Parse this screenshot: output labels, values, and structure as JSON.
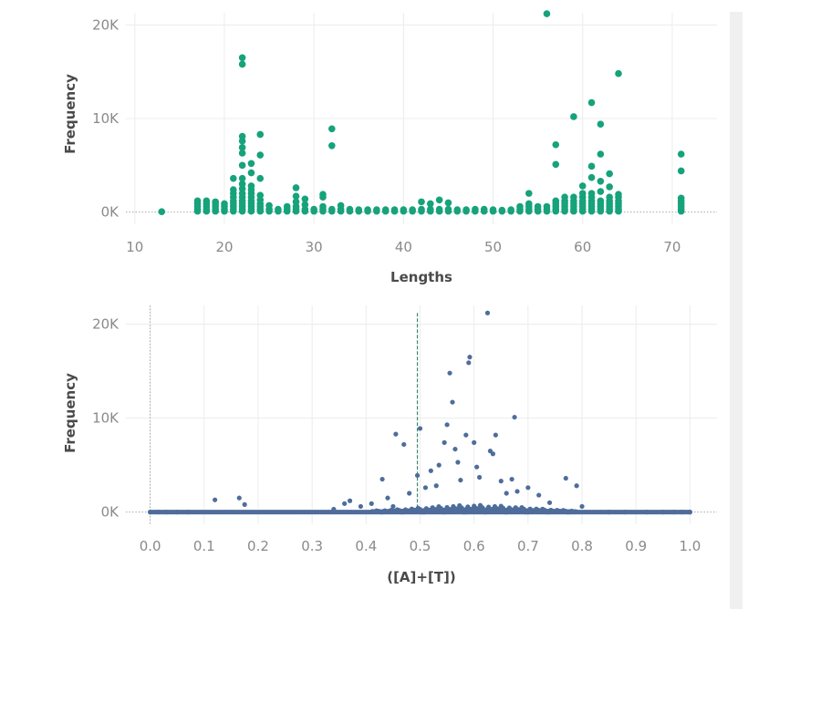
{
  "colors": {
    "green": "#16a27a",
    "blue": "#4e6d9b",
    "grid": "#ececec",
    "zero_line": "#a8a8a8",
    "ref_line": "#3a8a6a"
  },
  "chart_data": [
    {
      "type": "scatter",
      "xlabel": "Lengths",
      "ylabel": "Frequency",
      "xlim": [
        9,
        75
      ],
      "ylim": [
        -1300,
        21300
      ],
      "x_ticks": [
        10,
        20,
        30,
        40,
        50,
        60,
        70
      ],
      "x_tick_labels": [
        "10",
        "20",
        "30",
        "40",
        "50",
        "60",
        "70"
      ],
      "y_ticks": [
        0,
        10000,
        20000
      ],
      "y_tick_labels": [
        "0K",
        "10K",
        "20K"
      ],
      "zero_line": true,
      "grid": true,
      "marker_color": "#16a27a",
      "points": [
        [
          13,
          50
        ],
        [
          17,
          100
        ],
        [
          17,
          300
        ],
        [
          17,
          600
        ],
        [
          17,
          900
        ],
        [
          17,
          1200
        ],
        [
          18,
          100
        ],
        [
          18,
          300
        ],
        [
          18,
          600
        ],
        [
          18,
          900
        ],
        [
          18,
          1200
        ],
        [
          19,
          100
        ],
        [
          19,
          300
        ],
        [
          19,
          600
        ],
        [
          19,
          900
        ],
        [
          19,
          1100
        ],
        [
          20,
          100
        ],
        [
          20,
          300
        ],
        [
          20,
          600
        ],
        [
          20,
          900
        ],
        [
          21,
          100
        ],
        [
          21,
          300
        ],
        [
          21,
          600
        ],
        [
          21,
          900
        ],
        [
          21,
          1200
        ],
        [
          21,
          1600
        ],
        [
          21,
          2000
        ],
        [
          21,
          2400
        ],
        [
          21,
          3600
        ],
        [
          22,
          100
        ],
        [
          22,
          300
        ],
        [
          22,
          600
        ],
        [
          22,
          900
        ],
        [
          22,
          1200
        ],
        [
          22,
          1600
        ],
        [
          22,
          2000
        ],
        [
          22,
          2500
        ],
        [
          22,
          3000
        ],
        [
          22,
          3600
        ],
        [
          22,
          5000
        ],
        [
          22,
          6300
        ],
        [
          22,
          6900
        ],
        [
          22,
          7600
        ],
        [
          22,
          8100
        ],
        [
          22,
          15800
        ],
        [
          22,
          16500
        ],
        [
          23,
          100
        ],
        [
          23,
          300
        ],
        [
          23,
          600
        ],
        [
          23,
          900
        ],
        [
          23,
          1200
        ],
        [
          23,
          1600
        ],
        [
          23,
          2000
        ],
        [
          23,
          2400
        ],
        [
          23,
          2800
        ],
        [
          23,
          4200
        ],
        [
          23,
          5200
        ],
        [
          24,
          100
        ],
        [
          24,
          300
        ],
        [
          24,
          600
        ],
        [
          24,
          900
        ],
        [
          24,
          1300
        ],
        [
          24,
          1800
        ],
        [
          24,
          3600
        ],
        [
          24,
          6100
        ],
        [
          24,
          8300
        ],
        [
          25,
          100
        ],
        [
          25,
          300
        ],
        [
          25,
          700
        ],
        [
          26,
          100
        ],
        [
          26,
          300
        ],
        [
          27,
          100
        ],
        [
          27,
          300
        ],
        [
          27,
          600
        ],
        [
          28,
          100
        ],
        [
          28,
          300
        ],
        [
          28,
          600
        ],
        [
          28,
          1100
        ],
        [
          28,
          1700
        ],
        [
          28,
          2600
        ],
        [
          29,
          100
        ],
        [
          29,
          300
        ],
        [
          29,
          800
        ],
        [
          29,
          1400
        ],
        [
          30,
          100
        ],
        [
          30,
          300
        ],
        [
          31,
          100
        ],
        [
          31,
          300
        ],
        [
          31,
          600
        ],
        [
          31,
          1600
        ],
        [
          31,
          1900
        ],
        [
          32,
          100
        ],
        [
          32,
          300
        ],
        [
          32,
          7100
        ],
        [
          32,
          8900
        ],
        [
          33,
          100
        ],
        [
          33,
          300
        ],
        [
          33,
          700
        ],
        [
          34,
          100
        ],
        [
          34,
          300
        ],
        [
          35,
          100
        ],
        [
          35,
          250
        ],
        [
          36,
          100
        ],
        [
          36,
          250
        ],
        [
          37,
          100
        ],
        [
          37,
          250
        ],
        [
          38,
          100
        ],
        [
          38,
          250
        ],
        [
          39,
          100
        ],
        [
          39,
          250
        ],
        [
          40,
          100
        ],
        [
          40,
          250
        ],
        [
          41,
          100
        ],
        [
          41,
          250
        ],
        [
          42,
          100
        ],
        [
          42,
          300
        ],
        [
          42,
          1100
        ],
        [
          43,
          100
        ],
        [
          43,
          300
        ],
        [
          43,
          900
        ],
        [
          44,
          100
        ],
        [
          44,
          300
        ],
        [
          44,
          1300
        ],
        [
          45,
          100
        ],
        [
          45,
          300
        ],
        [
          45,
          1000
        ],
        [
          46,
          100
        ],
        [
          46,
          250
        ],
        [
          47,
          100
        ],
        [
          47,
          250
        ],
        [
          48,
          100
        ],
        [
          48,
          300
        ],
        [
          49,
          100
        ],
        [
          49,
          300
        ],
        [
          50,
          100
        ],
        [
          50,
          250
        ],
        [
          51,
          100
        ],
        [
          51,
          200
        ],
        [
          52,
          100
        ],
        [
          52,
          250
        ],
        [
          53,
          100
        ],
        [
          53,
          300
        ],
        [
          53,
          600
        ],
        [
          54,
          100
        ],
        [
          54,
          300
        ],
        [
          54,
          600
        ],
        [
          54,
          900
        ],
        [
          54,
          2000
        ],
        [
          55,
          100
        ],
        [
          55,
          300
        ],
        [
          55,
          600
        ],
        [
          56,
          100
        ],
        [
          56,
          300
        ],
        [
          56,
          600
        ],
        [
          56,
          21200
        ],
        [
          57,
          100
        ],
        [
          57,
          300
        ],
        [
          57,
          600
        ],
        [
          57,
          900
        ],
        [
          57,
          1200
        ],
        [
          57,
          5100
        ],
        [
          57,
          7200
        ],
        [
          58,
          100
        ],
        [
          58,
          300
        ],
        [
          58,
          600
        ],
        [
          58,
          900
        ],
        [
          58,
          1200
        ],
        [
          58,
          1600
        ],
        [
          59,
          100
        ],
        [
          59,
          300
        ],
        [
          59,
          600
        ],
        [
          59,
          900
        ],
        [
          59,
          1200
        ],
        [
          59,
          1600
        ],
        [
          59,
          10200
        ],
        [
          60,
          100
        ],
        [
          60,
          300
        ],
        [
          60,
          600
        ],
        [
          60,
          900
        ],
        [
          60,
          1200
        ],
        [
          60,
          1600
        ],
        [
          60,
          2000
        ],
        [
          60,
          2800
        ],
        [
          61,
          100
        ],
        [
          61,
          300
        ],
        [
          61,
          600
        ],
        [
          61,
          900
        ],
        [
          61,
          1200
        ],
        [
          61,
          1600
        ],
        [
          61,
          2000
        ],
        [
          61,
          3700
        ],
        [
          61,
          4900
        ],
        [
          61,
          11700
        ],
        [
          62,
          100
        ],
        [
          62,
          300
        ],
        [
          62,
          600
        ],
        [
          62,
          900
        ],
        [
          62,
          1200
        ],
        [
          62,
          2200
        ],
        [
          62,
          3300
        ],
        [
          62,
          6200
        ],
        [
          62,
          9400
        ],
        [
          63,
          100
        ],
        [
          63,
          300
        ],
        [
          63,
          600
        ],
        [
          63,
          900
        ],
        [
          63,
          1200
        ],
        [
          63,
          1600
        ],
        [
          63,
          2700
        ],
        [
          63,
          4100
        ],
        [
          64,
          100
        ],
        [
          64,
          300
        ],
        [
          64,
          600
        ],
        [
          64,
          900
        ],
        [
          64,
          1200
        ],
        [
          64,
          1600
        ],
        [
          64,
          1900
        ],
        [
          64,
          14800
        ],
        [
          71,
          100
        ],
        [
          71,
          300
        ],
        [
          71,
          600
        ],
        [
          71,
          900
        ],
        [
          71,
          1200
        ],
        [
          71,
          1500
        ],
        [
          71,
          4400
        ],
        [
          71,
          6200
        ]
      ]
    },
    {
      "type": "scatter",
      "xlabel": "([A]+[T])",
      "ylabel": "Frequency",
      "xlim": [
        -0.045,
        1.05
      ],
      "ylim": [
        -1300,
        22000
      ],
      "x_ticks": [
        0.0,
        0.1,
        0.2,
        0.3,
        0.4,
        0.5,
        0.6,
        0.7,
        0.8,
        0.9,
        1.0
      ],
      "x_tick_labels": [
        "0.0",
        "0.1",
        "0.2",
        "0.3",
        "0.4",
        "0.5",
        "0.6",
        "0.7",
        "0.8",
        "0.9",
        "1.0"
      ],
      "y_ticks": [
        0,
        10000,
        20000
      ],
      "y_tick_labels": [
        "0K",
        "10K",
        "20K"
      ],
      "zero_line": true,
      "grid": true,
      "reference_line_x": 0.495,
      "marker_color": "#4e6d9b",
      "points": [
        [
          0.0,
          0
        ],
        [
          0.015,
          0
        ],
        [
          0.03,
          0
        ],
        [
          0.05,
          0
        ],
        [
          0.07,
          0
        ],
        [
          0.12,
          1300
        ],
        [
          0.165,
          1500
        ],
        [
          0.175,
          800
        ],
        [
          0.34,
          300
        ],
        [
          0.36,
          900
        ],
        [
          0.37,
          1200
        ],
        [
          0.39,
          600
        ],
        [
          0.41,
          900
        ],
        [
          0.43,
          3500
        ],
        [
          0.44,
          1500
        ],
        [
          0.45,
          600
        ],
        [
          0.455,
          8300
        ],
        [
          0.47,
          7200
        ],
        [
          0.48,
          2000
        ],
        [
          0.495,
          3900
        ],
        [
          0.5,
          8900
        ],
        [
          0.51,
          2600
        ],
        [
          0.52,
          4400
        ],
        [
          0.53,
          2800
        ],
        [
          0.535,
          5000
        ],
        [
          0.545,
          7400
        ],
        [
          0.55,
          9300
        ],
        [
          0.555,
          14800
        ],
        [
          0.56,
          11700
        ],
        [
          0.565,
          6700
        ],
        [
          0.57,
          5300
        ],
        [
          0.575,
          3400
        ],
        [
          0.585,
          8200
        ],
        [
          0.59,
          15900
        ],
        [
          0.592,
          16500
        ],
        [
          0.6,
          7400
        ],
        [
          0.605,
          4800
        ],
        [
          0.61,
          3700
        ],
        [
          0.625,
          21200
        ],
        [
          0.63,
          6500
        ],
        [
          0.635,
          6200
        ],
        [
          0.64,
          8200
        ],
        [
          0.65,
          3300
        ],
        [
          0.66,
          2000
        ],
        [
          0.675,
          10100
        ],
        [
          0.67,
          3500
        ],
        [
          0.68,
          2200
        ],
        [
          0.7,
          2600
        ],
        [
          0.72,
          1800
        ],
        [
          0.74,
          1000
        ],
        [
          0.77,
          3600
        ],
        [
          0.79,
          2800
        ],
        [
          0.8,
          600
        ],
        [
          0.85,
          0
        ],
        [
          0.88,
          0
        ],
        [
          0.92,
          0
        ],
        [
          0.95,
          0
        ],
        [
          0.97,
          0
        ],
        [
          0.985,
          0
        ],
        [
          1.0,
          0
        ]
      ],
      "dense_band": {
        "from": 0.0,
        "to": 1.0,
        "peak_at": 0.6,
        "max_height": 1200
      }
    }
  ]
}
